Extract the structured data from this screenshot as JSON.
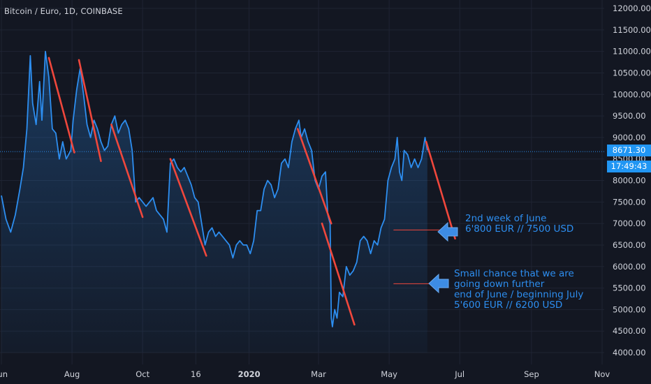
{
  "header": {
    "title": "Bitcoin / Euro, 1D, COINBASE"
  },
  "price_tag": {
    "value": "8671.30",
    "countdown": "17:49:43"
  },
  "annotations": {
    "target": {
      "lines": [
        "2nd week of June",
        "6'800 EUR // 7500 USD"
      ]
    },
    "alt": {
      "lines": [
        "Small chance that we are",
        "going down further",
        "end of June / beginning July",
        "5'600 EUR // 6200 USD"
      ]
    }
  },
  "colors": {
    "background": "#131722",
    "price_line": "#2d8ef0",
    "trend_lines": "#f0473c",
    "annotation_text": "#2d8ef0",
    "price_tag": "#2196f3"
  },
  "chart_data": {
    "type": "line",
    "title": "Bitcoin / Euro, 1D, COINBASE",
    "xlabel": "",
    "ylabel": "",
    "x_ticks": [
      "Jun",
      "Aug",
      "Oct",
      "16",
      "2020",
      "Mar",
      "May",
      "Jul",
      "Sep",
      "Nov"
    ],
    "y_ticks": [
      4000,
      4500,
      5000,
      5500,
      6000,
      6500,
      7000,
      7500,
      8000,
      8500,
      9000,
      9500,
      10000,
      10500,
      11000,
      11500,
      12000
    ],
    "ylim": [
      3900,
      12100
    ],
    "x_date_range": [
      "2019-06-01",
      "2020-11-01"
    ],
    "last_price": 8671.3,
    "grid": true,
    "series": [
      {
        "values": [
          [
            "2019-06-01",
            7650
          ],
          [
            "2019-06-05",
            7100
          ],
          [
            "2019-06-09",
            6800
          ],
          [
            "2019-06-13",
            7200
          ],
          [
            "2019-06-17",
            7800
          ],
          [
            "2019-06-20",
            8300
          ],
          [
            "2019-06-23",
            9200
          ],
          [
            "2019-06-26",
            10900
          ],
          [
            "2019-06-28",
            9800
          ],
          [
            "2019-07-01",
            9300
          ],
          [
            "2019-07-04",
            10300
          ],
          [
            "2019-07-06",
            9400
          ],
          [
            "2019-07-09",
            11000
          ],
          [
            "2019-07-12",
            10400
          ],
          [
            "2019-07-15",
            9200
          ],
          [
            "2019-07-18",
            9100
          ],
          [
            "2019-07-21",
            8500
          ],
          [
            "2019-07-24",
            8900
          ],
          [
            "2019-07-27",
            8500
          ],
          [
            "2019-07-31",
            8700
          ],
          [
            "2019-08-02",
            9400
          ],
          [
            "2019-08-05",
            10100
          ],
          [
            "2019-08-08",
            10600
          ],
          [
            "2019-08-11",
            10000
          ],
          [
            "2019-08-14",
            9300
          ],
          [
            "2019-08-17",
            9000
          ],
          [
            "2019-08-20",
            9400
          ],
          [
            "2019-08-23",
            9200
          ],
          [
            "2019-08-26",
            8900
          ],
          [
            "2019-08-29",
            8700
          ],
          [
            "2019-09-01",
            8800
          ],
          [
            "2019-09-04",
            9300
          ],
          [
            "2019-09-07",
            9500
          ],
          [
            "2019-09-10",
            9100
          ],
          [
            "2019-09-13",
            9300
          ],
          [
            "2019-09-16",
            9400
          ],
          [
            "2019-09-19",
            9200
          ],
          [
            "2019-09-22",
            8700
          ],
          [
            "2019-09-25",
            7500
          ],
          [
            "2019-09-28",
            7600
          ],
          [
            "2019-10-01",
            7500
          ],
          [
            "2019-10-04",
            7400
          ],
          [
            "2019-10-07",
            7500
          ],
          [
            "2019-10-10",
            7600
          ],
          [
            "2019-10-13",
            7300
          ],
          [
            "2019-10-16",
            7200
          ],
          [
            "2019-10-19",
            7100
          ],
          [
            "2019-10-22",
            6800
          ],
          [
            "2019-10-25",
            8400
          ],
          [
            "2019-10-28",
            8500
          ],
          [
            "2019-10-31",
            8300
          ],
          [
            "2019-11-03",
            8200
          ],
          [
            "2019-11-06",
            8300
          ],
          [
            "2019-11-09",
            8100
          ],
          [
            "2019-11-12",
            7900
          ],
          [
            "2019-11-15",
            7600
          ],
          [
            "2019-11-18",
            7500
          ],
          [
            "2019-11-21",
            7000
          ],
          [
            "2019-11-24",
            6500
          ],
          [
            "2019-11-27",
            6800
          ],
          [
            "2019-11-30",
            6900
          ],
          [
            "2019-12-03",
            6700
          ],
          [
            "2019-12-06",
            6800
          ],
          [
            "2019-12-09",
            6700
          ],
          [
            "2019-12-12",
            6600
          ],
          [
            "2019-12-15",
            6500
          ],
          [
            "2019-12-18",
            6200
          ],
          [
            "2019-12-21",
            6500
          ],
          [
            "2019-12-24",
            6600
          ],
          [
            "2019-12-27",
            6500
          ],
          [
            "2019-12-30",
            6500
          ],
          [
            "2020-01-02",
            6300
          ],
          [
            "2020-01-05",
            6600
          ],
          [
            "2020-01-08",
            7300
          ],
          [
            "2020-01-11",
            7300
          ],
          [
            "2020-01-14",
            7800
          ],
          [
            "2020-01-17",
            8000
          ],
          [
            "2020-01-20",
            7900
          ],
          [
            "2020-01-23",
            7600
          ],
          [
            "2020-01-26",
            7800
          ],
          [
            "2020-01-29",
            8400
          ],
          [
            "2020-02-01",
            8500
          ],
          [
            "2020-02-04",
            8300
          ],
          [
            "2020-02-07",
            8900
          ],
          [
            "2020-02-10",
            9200
          ],
          [
            "2020-02-13",
            9400
          ],
          [
            "2020-02-15",
            9000
          ],
          [
            "2020-02-18",
            9200
          ],
          [
            "2020-02-21",
            8900
          ],
          [
            "2020-02-24",
            8700
          ],
          [
            "2020-02-27",
            8000
          ],
          [
            "2020-03-01",
            7800
          ],
          [
            "2020-03-04",
            8100
          ],
          [
            "2020-03-07",
            8200
          ],
          [
            "2020-03-09",
            7200
          ],
          [
            "2020-03-11",
            7000
          ],
          [
            "2020-03-12",
            4800
          ],
          [
            "2020-03-13",
            4600
          ],
          [
            "2020-03-15",
            5000
          ],
          [
            "2020-03-17",
            4800
          ],
          [
            "2020-03-19",
            5400
          ],
          [
            "2020-03-22",
            5300
          ],
          [
            "2020-03-25",
            6000
          ],
          [
            "2020-03-28",
            5800
          ],
          [
            "2020-03-31",
            5900
          ],
          [
            "2020-04-03",
            6100
          ],
          [
            "2020-04-06",
            6600
          ],
          [
            "2020-04-09",
            6700
          ],
          [
            "2020-04-12",
            6600
          ],
          [
            "2020-04-15",
            6300
          ],
          [
            "2020-04-18",
            6600
          ],
          [
            "2020-04-21",
            6500
          ],
          [
            "2020-04-24",
            6900
          ],
          [
            "2020-04-27",
            7100
          ],
          [
            "2020-04-30",
            8000
          ],
          [
            "2020-05-03",
            8300
          ],
          [
            "2020-05-06",
            8500
          ],
          [
            "2020-05-08",
            9000
          ],
          [
            "2020-05-10",
            8200
          ],
          [
            "2020-05-12",
            8000
          ],
          [
            "2020-05-14",
            8700
          ],
          [
            "2020-05-17",
            8600
          ],
          [
            "2020-05-20",
            8300
          ],
          [
            "2020-05-23",
            8500
          ],
          [
            "2020-05-26",
            8300
          ],
          [
            "2020-05-29",
            8500
          ],
          [
            "2020-06-01",
            9000
          ],
          [
            "2020-06-03",
            8700
          ]
        ]
      }
    ],
    "trend_lines": [
      {
        "from": [
          "2019-07-12",
          10850
        ],
        "to": [
          "2019-08-03",
          8650
        ]
      },
      {
        "from": [
          "2019-08-07",
          10800
        ],
        "to": [
          "2019-08-26",
          8450
        ]
      },
      {
        "from": [
          "2019-09-04",
          9300
        ],
        "to": [
          "2019-10-01",
          7150
        ]
      },
      {
        "from": [
          "2019-10-25",
          8500
        ],
        "to": [
          "2019-11-25",
          6250
        ]
      },
      {
        "from": [
          "2020-02-12",
          9200
        ],
        "to": [
          "2020-03-12",
          7000
        ]
      },
      {
        "from": [
          "2020-03-04",
          7000
        ],
        "to": [
          "2020-04-01",
          4650
        ]
      },
      {
        "from": [
          "2020-06-02",
          8900
        ],
        "to": [
          "2020-06-27",
          6650
        ]
      },
      {
        "from": [
          "2020-05-05",
          6850
        ],
        "to": [
          "2020-06-14",
          6850
        ]
      },
      {
        "from": [
          "2020-05-05",
          5600
        ],
        "to": [
          "2020-06-14",
          5600
        ]
      }
    ]
  }
}
